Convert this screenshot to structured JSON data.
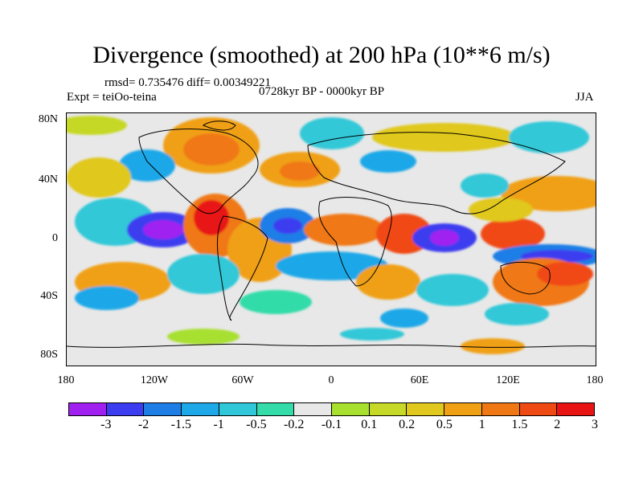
{
  "title": "Divergence (smoothed) at 200 hPa (10**6 m/s)",
  "rmsd_text": "rmsd= 0.735476 diff= 0.00349221",
  "expt_text": "Expt = teiOo-teina",
  "period_text": "0728kyr BP - 0000kyr BP",
  "season": "JJA",
  "y_ticks": [
    "80N",
    "40N",
    "0",
    "40S",
    "80S"
  ],
  "x_ticks": [
    "180",
    "120W",
    "60W",
    "0",
    "60E",
    "120E",
    "180"
  ],
  "colorbar": {
    "labels": [
      "-3",
      "-2",
      "-1.5",
      "-1",
      "-0.5",
      "-0.2",
      "-0.1",
      "0.1",
      "0.2",
      "0.5",
      "1",
      "1.5",
      "2",
      "3"
    ],
    "colors": [
      "#a020f0",
      "#3c3cf0",
      "#1e7ee6",
      "#1fa8e8",
      "#30c8d8",
      "#33dca8",
      "#e8e8e8",
      "#a8e030",
      "#c6d828",
      "#e0c81e",
      "#f0a014",
      "#f07814",
      "#f04a14",
      "#e81414"
    ]
  }
}
